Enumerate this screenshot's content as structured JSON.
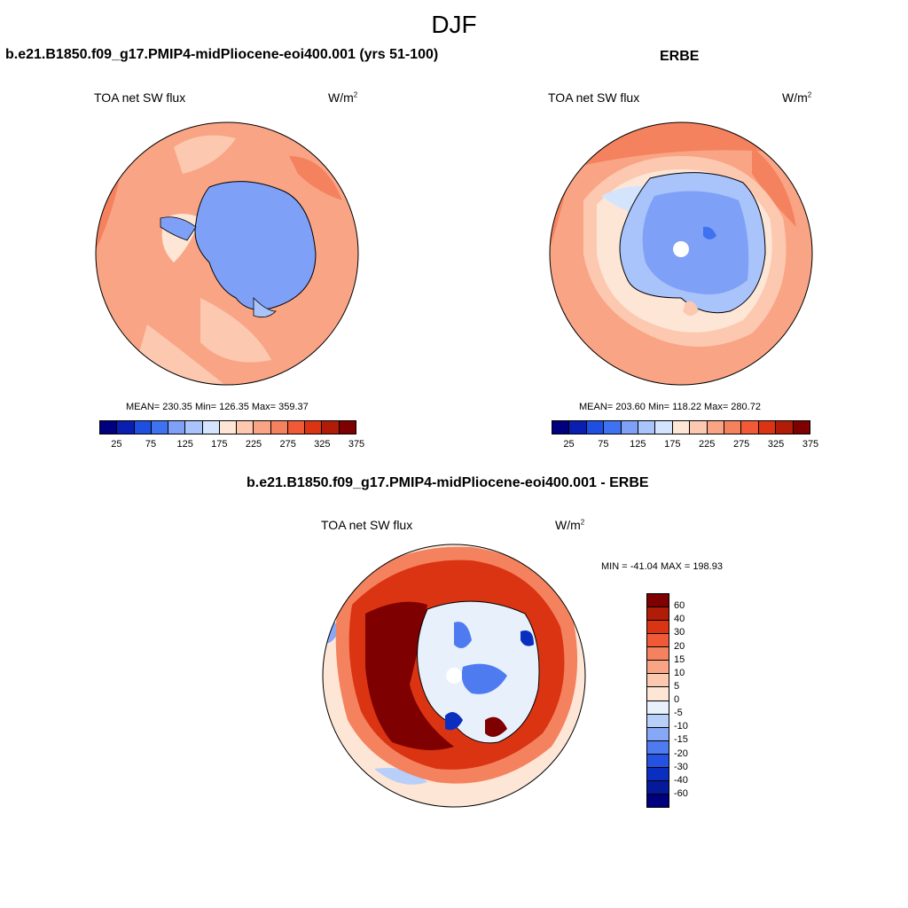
{
  "figure": {
    "title": "DJF"
  },
  "panels": [
    {
      "title": "b.e21.B1850.f09_g17.PMIP4-midPliocene-eoi400.001 (yrs 51-100)",
      "variable": "TOA net SW flux",
      "units_base": "W/m",
      "units_exp": "2",
      "stats": "MEAN= 230.35  Min= 126.35  Max= 359.37",
      "colorbar_ticks": [
        "25",
        "75",
        "125",
        "175",
        "225",
        "275",
        "325",
        "375"
      ]
    },
    {
      "title": "ERBE",
      "variable": "TOA net SW flux",
      "units_base": "W/m",
      "units_exp": "2",
      "stats": "MEAN= 203.60  Min= 118.22  Max= 280.72",
      "colorbar_ticks": [
        "25",
        "75",
        "125",
        "175",
        "225",
        "275",
        "325",
        "375"
      ]
    },
    {
      "title": "b.e21.B1850.f09_g17.PMIP4-midPliocene-eoi400.001 - ERBE",
      "variable": "TOA net SW flux",
      "units_base": "W/m",
      "units_exp": "2",
      "stats": "MIN = -41.04 MAX = 198.93",
      "colorbar_ticks": [
        "60",
        "40",
        "30",
        "20",
        "15",
        "10",
        "5",
        "0",
        "-5",
        "-10",
        "-15",
        "-20",
        "-30",
        "-40",
        "-60"
      ]
    }
  ],
  "colors": {
    "abs_scale": [
      "#00007f",
      "#0a1fb0",
      "#1f4fe0",
      "#3f72f0",
      "#7ea0f7",
      "#a9c3fb",
      "#d4e4fd",
      "#fde6d6",
      "#fcc9b0",
      "#f9a585",
      "#f5825e",
      "#f05a37",
      "#da3413",
      "#b01c08",
      "#7f0000"
    ],
    "diff_scale": [
      "#7f0000",
      "#b01c08",
      "#da3413",
      "#f05a37",
      "#f5825e",
      "#f9a585",
      "#fcc9b0",
      "#fde6d6",
      "#e8f0fc",
      "#b8cffa",
      "#86a8f6",
      "#4f7bf0",
      "#2552e3",
      "#0a2fc0",
      "#041a9a",
      "#00007f"
    ]
  }
}
